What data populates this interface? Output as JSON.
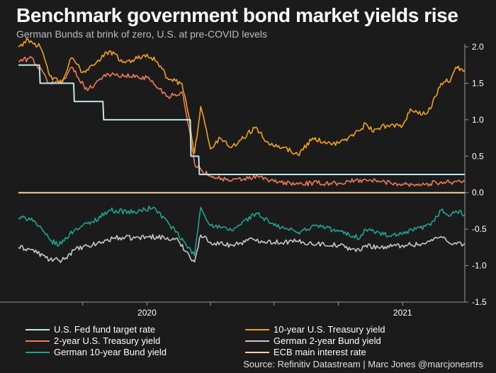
{
  "header": {
    "title": "Benchmark government bond market yields rise",
    "subtitle": "German Bunds at brink of zero, U.S. at pre-COVID levels"
  },
  "source": "Source: Refinitiv Datastream | Marc Jones @marcjonesrtrs",
  "colors": {
    "background": "#1b1b1b",
    "fed": "#bfe6ec",
    "ust10": "#f3a020",
    "ust2": "#f07a5c",
    "bund2": "#c8c8c8",
    "bund10": "#1fa394",
    "ecb": "#f6d2a2"
  },
  "chart_data": {
    "type": "line",
    "title": "Benchmark government bond market yields rise",
    "subtitle": "German Bunds at brink of zero, U.S. at pre-COVID levels",
    "y_axis": {
      "side": "right",
      "ylim": [
        -1.5,
        2.0
      ],
      "ticks": [
        2.0,
        1.5,
        1.0,
        0.5,
        0.0,
        -0.5,
        -1.0,
        -1.5
      ],
      "tick_labels": [
        "2.0",
        "1.5",
        "1.0",
        "0.5",
        "0.0",
        "-0.5",
        "-1.0",
        "-1.5"
      ]
    },
    "x_axis": {
      "xlim": [
        "2019-07-01",
        "2021-03-31"
      ],
      "year_labels": [
        {
          "label": "2020",
          "date": "2020-01-01"
        },
        {
          "label": "2021",
          "date": "2021-01-01"
        }
      ],
      "minor_ticks": [
        "2019-10-01",
        "2020-04-01",
        "2020-07-01",
        "2020-10-01",
        "2021-04-01"
      ]
    },
    "grid": false,
    "legend_position": "bottom",
    "series": [
      {
        "name": "U.S. Fed fund target rate",
        "color_key": "fed",
        "step": true,
        "points": [
          [
            "2019-07-01",
            1.75
          ],
          [
            "2019-07-31",
            1.75
          ],
          [
            "2019-08-01",
            1.5
          ],
          [
            "2019-09-18",
            1.5
          ],
          [
            "2019-09-19",
            1.25
          ],
          [
            "2019-10-30",
            1.25
          ],
          [
            "2019-10-31",
            1.0
          ],
          [
            "2020-03-03",
            1.0
          ],
          [
            "2020-03-04",
            0.5
          ],
          [
            "2020-03-15",
            0.5
          ],
          [
            "2020-03-16",
            0.25
          ],
          [
            "2021-03-31",
            0.25
          ]
        ]
      },
      {
        "name": "10-year U.S. Treasury yield",
        "color_key": "ust10",
        "points": [
          [
            "2019-07-01",
            2.0
          ],
          [
            "2019-07-15",
            2.1
          ],
          [
            "2019-08-01",
            2.0
          ],
          [
            "2019-08-15",
            1.6
          ],
          [
            "2019-09-01",
            1.5
          ],
          [
            "2019-09-15",
            1.85
          ],
          [
            "2019-10-01",
            1.65
          ],
          [
            "2019-10-15",
            1.75
          ],
          [
            "2019-11-08",
            1.94
          ],
          [
            "2019-12-01",
            1.78
          ],
          [
            "2020-01-01",
            1.9
          ],
          [
            "2020-01-15",
            1.8
          ],
          [
            "2020-02-01",
            1.55
          ],
          [
            "2020-02-20",
            1.5
          ],
          [
            "2020-03-01",
            1.05
          ],
          [
            "2020-03-09",
            0.54
          ],
          [
            "2020-03-18",
            1.18
          ],
          [
            "2020-04-01",
            0.6
          ],
          [
            "2020-04-15",
            0.75
          ],
          [
            "2020-05-01",
            0.62
          ],
          [
            "2020-06-05",
            0.9
          ],
          [
            "2020-06-20",
            0.7
          ],
          [
            "2020-07-15",
            0.62
          ],
          [
            "2020-08-04",
            0.52
          ],
          [
            "2020-08-25",
            0.75
          ],
          [
            "2020-09-15",
            0.68
          ],
          [
            "2020-10-01",
            0.68
          ],
          [
            "2020-10-15",
            0.75
          ],
          [
            "2020-11-01",
            0.85
          ],
          [
            "2020-11-09",
            0.95
          ],
          [
            "2020-11-20",
            0.83
          ],
          [
            "2020-12-01",
            0.9
          ],
          [
            "2020-12-15",
            0.93
          ],
          [
            "2021-01-01",
            0.92
          ],
          [
            "2021-01-12",
            1.15
          ],
          [
            "2021-01-29",
            1.07
          ],
          [
            "2021-02-10",
            1.15
          ],
          [
            "2021-02-25",
            1.5
          ],
          [
            "2021-03-05",
            1.56
          ],
          [
            "2021-03-10",
            1.52
          ],
          [
            "2021-03-18",
            1.72
          ],
          [
            "2021-03-31",
            1.68
          ]
        ]
      },
      {
        "name": "2-year U.S. Treasury yield",
        "color_key": "ust2",
        "points": [
          [
            "2019-07-01",
            1.8
          ],
          [
            "2019-07-20",
            1.85
          ],
          [
            "2019-08-15",
            1.5
          ],
          [
            "2019-09-01",
            1.52
          ],
          [
            "2019-09-15",
            1.72
          ],
          [
            "2019-10-08",
            1.4
          ],
          [
            "2019-11-01",
            1.62
          ],
          [
            "2019-12-01",
            1.6
          ],
          [
            "2020-01-01",
            1.58
          ],
          [
            "2020-01-31",
            1.32
          ],
          [
            "2020-02-20",
            1.38
          ],
          [
            "2020-03-01",
            0.9
          ],
          [
            "2020-03-09",
            0.4
          ],
          [
            "2020-03-20",
            0.3
          ],
          [
            "2020-04-01",
            0.23
          ],
          [
            "2020-05-01",
            0.16
          ],
          [
            "2020-06-08",
            0.22
          ],
          [
            "2020-07-01",
            0.15
          ],
          [
            "2020-08-01",
            0.12
          ],
          [
            "2020-09-01",
            0.13
          ],
          [
            "2020-10-01",
            0.13
          ],
          [
            "2020-11-09",
            0.18
          ],
          [
            "2020-12-01",
            0.15
          ],
          [
            "2021-01-01",
            0.12
          ],
          [
            "2021-02-01",
            0.11
          ],
          [
            "2021-02-25",
            0.15
          ],
          [
            "2021-03-15",
            0.15
          ],
          [
            "2021-03-31",
            0.16
          ]
        ]
      },
      {
        "name": "German 2-year Bund yield",
        "color_key": "bund2",
        "points": [
          [
            "2019-07-01",
            -0.75
          ],
          [
            "2019-07-20",
            -0.78
          ],
          [
            "2019-08-15",
            -0.92
          ],
          [
            "2019-09-01",
            -0.93
          ],
          [
            "2019-09-20",
            -0.78
          ],
          [
            "2019-10-15",
            -0.72
          ],
          [
            "2019-11-15",
            -0.62
          ],
          [
            "2019-12-15",
            -0.62
          ],
          [
            "2020-01-15",
            -0.6
          ],
          [
            "2020-02-15",
            -0.66
          ],
          [
            "2020-03-09",
            -0.95
          ],
          [
            "2020-03-18",
            -0.58
          ],
          [
            "2020-04-01",
            -0.68
          ],
          [
            "2020-05-01",
            -0.72
          ],
          [
            "2020-06-01",
            -0.64
          ],
          [
            "2020-07-01",
            -0.68
          ],
          [
            "2020-08-01",
            -0.67
          ],
          [
            "2020-09-01",
            -0.7
          ],
          [
            "2020-10-01",
            -0.72
          ],
          [
            "2020-11-01",
            -0.8
          ],
          [
            "2020-11-09",
            -0.72
          ],
          [
            "2020-12-01",
            -0.75
          ],
          [
            "2021-01-01",
            -0.72
          ],
          [
            "2021-02-01",
            -0.7
          ],
          [
            "2021-02-25",
            -0.6
          ],
          [
            "2021-03-15",
            -0.7
          ],
          [
            "2021-03-31",
            -0.7
          ]
        ]
      },
      {
        "name": "German 10-year Bund yield",
        "color_key": "bund10",
        "points": [
          [
            "2019-07-01",
            -0.35
          ],
          [
            "2019-07-20",
            -0.35
          ],
          [
            "2019-08-15",
            -0.65
          ],
          [
            "2019-08-28",
            -0.72
          ],
          [
            "2019-09-20",
            -0.5
          ],
          [
            "2019-10-15",
            -0.4
          ],
          [
            "2019-11-08",
            -0.24
          ],
          [
            "2019-12-15",
            -0.27
          ],
          [
            "2020-01-10",
            -0.2
          ],
          [
            "2020-02-01",
            -0.42
          ],
          [
            "2020-03-09",
            -0.86
          ],
          [
            "2020-03-18",
            -0.2
          ],
          [
            "2020-04-01",
            -0.45
          ],
          [
            "2020-05-01",
            -0.52
          ],
          [
            "2020-06-05",
            -0.28
          ],
          [
            "2020-07-01",
            -0.45
          ],
          [
            "2020-08-04",
            -0.54
          ],
          [
            "2020-09-01",
            -0.45
          ],
          [
            "2020-10-01",
            -0.53
          ],
          [
            "2020-11-01",
            -0.62
          ],
          [
            "2020-11-09",
            -0.5
          ],
          [
            "2020-12-15",
            -0.6
          ],
          [
            "2021-01-01",
            -0.57
          ],
          [
            "2021-01-20",
            -0.5
          ],
          [
            "2021-02-10",
            -0.45
          ],
          [
            "2021-02-25",
            -0.24
          ],
          [
            "2021-03-10",
            -0.32
          ],
          [
            "2021-03-18",
            -0.25
          ],
          [
            "2021-03-31",
            -0.3
          ]
        ]
      },
      {
        "name": "ECB main interest rate",
        "color_key": "ecb",
        "step": true,
        "points": [
          [
            "2019-07-01",
            0.0
          ],
          [
            "2021-03-31",
            0.0
          ]
        ]
      }
    ]
  },
  "legend": {
    "items": [
      {
        "label": "U.S. Fed fund target rate",
        "color_key": "fed"
      },
      {
        "label": "10-year U.S. Treasury yield",
        "color_key": "ust10"
      },
      {
        "label": "2-year U.S. Treasury yield",
        "color_key": "ust2"
      },
      {
        "label": "German 2-year Bund yield",
        "color_key": "bund2"
      },
      {
        "label": "German 10-year Bund yield",
        "color_key": "bund10"
      },
      {
        "label": "ECB main interest rate",
        "color_key": "ecb"
      }
    ]
  }
}
